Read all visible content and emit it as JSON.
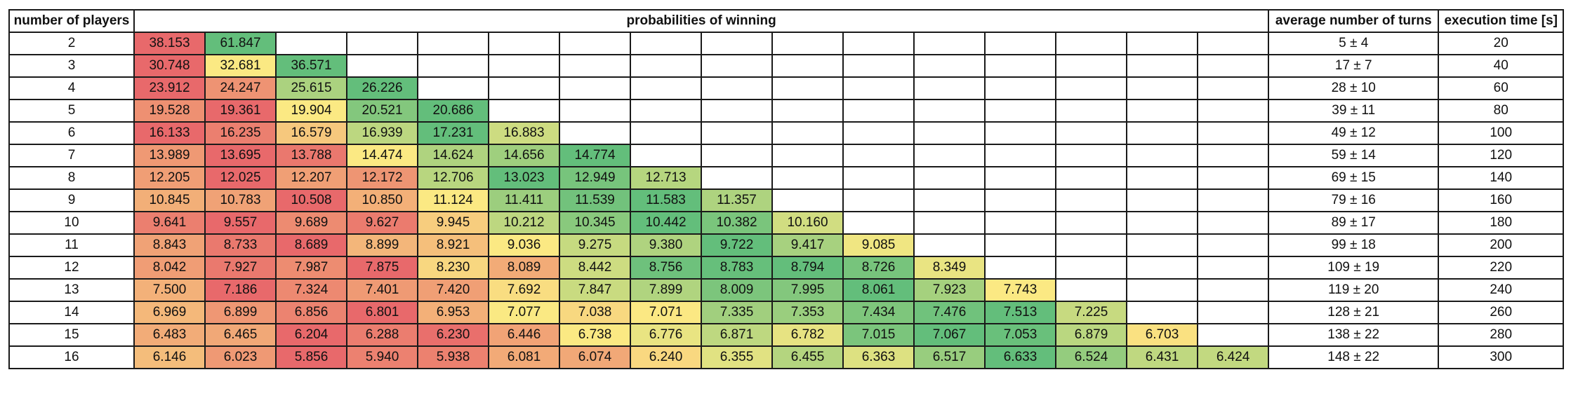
{
  "headers": {
    "players": "number of players",
    "probabilities": "probabilities of winning",
    "turns": "average number of turns",
    "time": "execution time [s]"
  },
  "rows": [
    {
      "players": "2",
      "probs": [
        "38.153",
        "61.847"
      ],
      "turns": "5 ± 4",
      "time": "20"
    },
    {
      "players": "3",
      "probs": [
        "30.748",
        "32.681",
        "36.571"
      ],
      "turns": "17 ± 7",
      "time": "40"
    },
    {
      "players": "4",
      "probs": [
        "23.912",
        "24.247",
        "25.615",
        "26.226"
      ],
      "turns": "28 ± 10",
      "time": "60"
    },
    {
      "players": "5",
      "probs": [
        "19.528",
        "19.361",
        "19.904",
        "20.521",
        "20.686"
      ],
      "turns": "39 ± 11",
      "time": "80"
    },
    {
      "players": "6",
      "probs": [
        "16.133",
        "16.235",
        "16.579",
        "16.939",
        "17.231",
        "16.883"
      ],
      "turns": "49 ± 12",
      "time": "100"
    },
    {
      "players": "7",
      "probs": [
        "13.989",
        "13.695",
        "13.788",
        "14.474",
        "14.624",
        "14.656",
        "14.774"
      ],
      "turns": "59 ± 14",
      "time": "120"
    },
    {
      "players": "8",
      "probs": [
        "12.205",
        "12.025",
        "12.207",
        "12.172",
        "12.706",
        "13.023",
        "12.949",
        "12.713"
      ],
      "turns": "69 ± 15",
      "time": "140"
    },
    {
      "players": "9",
      "probs": [
        "10.845",
        "10.783",
        "10.508",
        "10.850",
        "11.124",
        "11.411",
        "11.539",
        "11.583",
        "11.357"
      ],
      "turns": "79 ± 16",
      "time": "160"
    },
    {
      "players": "10",
      "probs": [
        "9.641",
        "9.557",
        "9.689",
        "9.627",
        "9.945",
        "10.212",
        "10.345",
        "10.442",
        "10.382",
        "10.160"
      ],
      "turns": "89 ± 17",
      "time": "180"
    },
    {
      "players": "11",
      "probs": [
        "8.843",
        "8.733",
        "8.689",
        "8.899",
        "8.921",
        "9.036",
        "9.275",
        "9.380",
        "9.722",
        "9.417",
        "9.085"
      ],
      "turns": "99 ± 18",
      "time": "200"
    },
    {
      "players": "12",
      "probs": [
        "8.042",
        "7.927",
        "7.987",
        "7.875",
        "8.230",
        "8.089",
        "8.442",
        "8.756",
        "8.783",
        "8.794",
        "8.726",
        "8.349"
      ],
      "turns": "109 ± 19",
      "time": "220"
    },
    {
      "players": "13",
      "probs": [
        "7.500",
        "7.186",
        "7.324",
        "7.401",
        "7.420",
        "7.692",
        "7.847",
        "7.899",
        "8.009",
        "7.995",
        "8.061",
        "7.923",
        "7.743"
      ],
      "turns": "119 ± 20",
      "time": "240"
    },
    {
      "players": "14",
      "probs": [
        "6.969",
        "6.899",
        "6.856",
        "6.801",
        "6.953",
        "7.077",
        "7.038",
        "7.071",
        "7.335",
        "7.353",
        "7.434",
        "7.476",
        "7.513",
        "7.225"
      ],
      "turns": "128 ± 21",
      "time": "260"
    },
    {
      "players": "15",
      "probs": [
        "6.483",
        "6.465",
        "6.204",
        "6.288",
        "6.230",
        "6.446",
        "6.738",
        "6.776",
        "6.871",
        "6.782",
        "7.015",
        "7.067",
        "7.053",
        "6.879",
        "6.703"
      ],
      "turns": "138 ± 22",
      "time": "280"
    },
    {
      "players": "16",
      "probs": [
        "6.146",
        "6.023",
        "5.856",
        "5.940",
        "5.938",
        "6.081",
        "6.074",
        "6.240",
        "6.355",
        "6.455",
        "6.363",
        "6.517",
        "6.633",
        "6.524",
        "6.431",
        "6.424"
      ],
      "turns": "148 ± 22",
      "time": "300"
    }
  ],
  "colors": {
    "low": "#e8696b",
    "mid": "#fbe983",
    "high": "#63be7b",
    "border": "#1a1a1a"
  }
}
